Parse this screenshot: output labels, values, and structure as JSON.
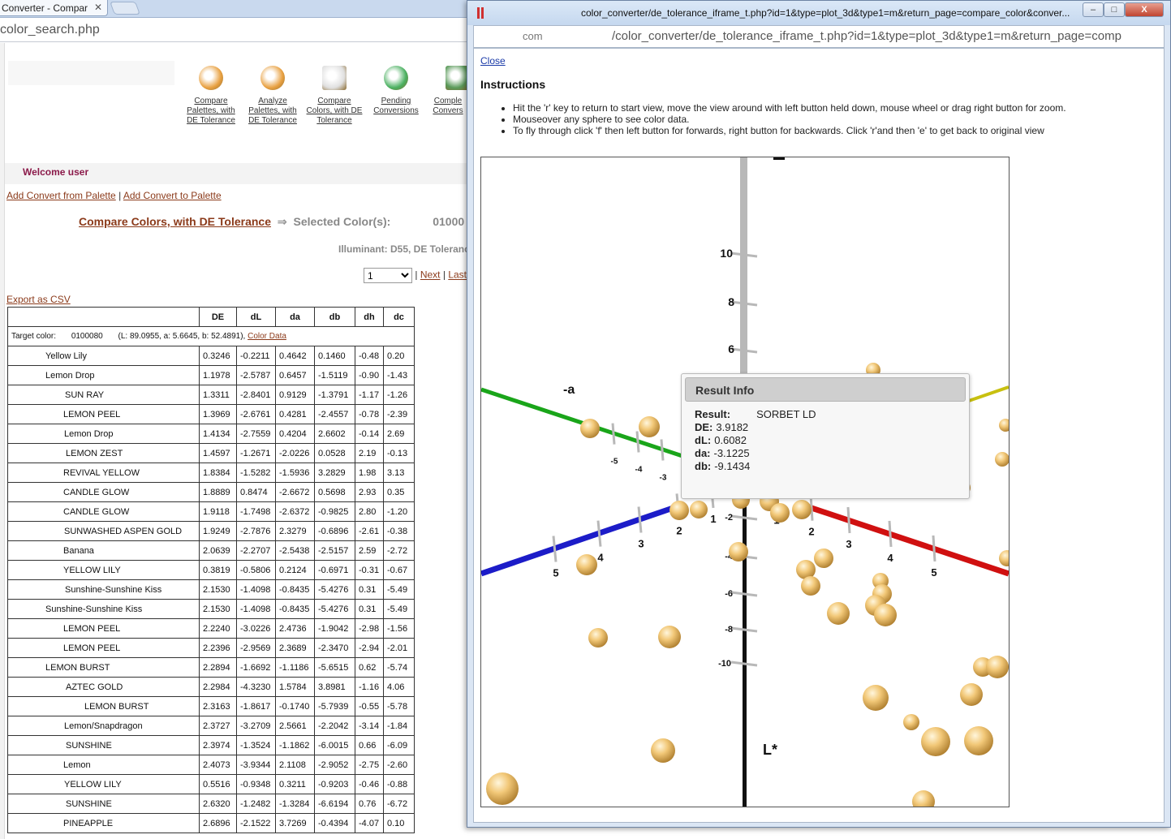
{
  "browser": {
    "tab_title": "Converter - Compar",
    "url_fragment": "color_search.php"
  },
  "nav": [
    {
      "label": "Compare Palettes, with DE Tolerance",
      "icon": "palette-icon"
    },
    {
      "label": "Analyze Palettes, with DE Tolerance",
      "icon": "palette-brush-icon"
    },
    {
      "label": "Compare Colors, with DE Tolerance",
      "icon": "color-wheel-icon"
    },
    {
      "label": "Pending Conversions",
      "icon": "runner-icon"
    },
    {
      "label": "Comple Convers",
      "icon": "checklist-icon"
    }
  ],
  "welcome": "Welcome user",
  "links": {
    "from": "Add Convert from Palette",
    "sep": "|",
    "to": "Add Convert to Palette"
  },
  "compare": {
    "title": "Compare Colors, with DE Tolerance",
    "arrow": "⇒",
    "selected_label": "Selected Color(s):",
    "selected_code": "01000",
    "illuminant": "Illuminant: D55, DE Toleranc"
  },
  "pager": {
    "page": "1",
    "next": "Next",
    "last": "Last",
    "sep": "|"
  },
  "export": "Export as CSV",
  "table": {
    "headers": [
      "",
      "DE",
      "dL",
      "da",
      "db",
      "dh",
      "dc"
    ],
    "target": {
      "label": "Target color:",
      "code": "0100080",
      "values": "(L: 89.0955, a: 5.6645, b: 52.4891),",
      "link": "Color Data"
    },
    "rows": [
      {
        "name": "Yellow Lily",
        "indent": 46,
        "de": "0.3246",
        "dl": "-0.2211",
        "da": "0.4642",
        "db": "0.1460",
        "dh": "-0.48",
        "dc": "0.20"
      },
      {
        "name": "Lemon Drop",
        "indent": 46,
        "de": "1.1978",
        "dl": "-2.5787",
        "da": "0.6457",
        "db": "-1.5119",
        "dh": "-0.90",
        "dc": "-1.43"
      },
      {
        "name": "SUN RAY",
        "indent": 70,
        "de": "1.3311",
        "dl": "-2.8401",
        "da": "0.9129",
        "db": "-1.3791",
        "dh": "-1.17",
        "dc": "-1.26"
      },
      {
        "name": "LEMON PEEL",
        "indent": 68,
        "de": "1.3969",
        "dl": "-2.6761",
        "da": "0.4281",
        "db": "-2.4557",
        "dh": "-0.78",
        "dc": "-2.39"
      },
      {
        "name": "Lemon Drop",
        "indent": 69,
        "de": "1.4134",
        "dl": "-2.7559",
        "da": "0.4204",
        "db": "2.6602",
        "dh": "-0.14",
        "dc": "2.69"
      },
      {
        "name": "LEMON ZEST",
        "indent": 71,
        "de": "1.4597",
        "dl": "-1.2671",
        "da": "-2.0226",
        "db": "0.0528",
        "dh": "2.19",
        "dc": "-0.13"
      },
      {
        "name": "REVIVAL YELLOW",
        "indent": 68,
        "de": "1.8384",
        "dl": "-1.5282",
        "da": "-1.5936",
        "db": "3.2829",
        "dh": "1.98",
        "dc": "3.13"
      },
      {
        "name": "CANDLE GLOW",
        "indent": 68,
        "de": "1.8889",
        "dl": "0.8474",
        "da": "-2.6672",
        "db": "0.5698",
        "dh": "2.93",
        "dc": "0.35"
      },
      {
        "name": "CANDLE GLOW",
        "indent": 68,
        "de": "1.9118",
        "dl": "-1.7498",
        "da": "-2.6372",
        "db": "-0.9825",
        "dh": "2.80",
        "dc": "-1.20"
      },
      {
        "name": "SUNWASHED ASPEN GOLD",
        "indent": 69,
        "de": "1.9249",
        "dl": "-2.7876",
        "da": "2.3279",
        "db": "-0.6896",
        "dh": "-2.61",
        "dc": "-0.38"
      },
      {
        "name": "Banana",
        "indent": 68,
        "de": "2.0639",
        "dl": "-2.2707",
        "da": "-2.5438",
        "db": "-2.5157",
        "dh": "2.59",
        "dc": "-2.72"
      },
      {
        "name": "YELLOW LILY",
        "indent": 68,
        "de": "0.3819",
        "dl": "-0.5806",
        "da": "0.2124",
        "db": "-0.6971",
        "dh": "-0.31",
        "dc": "-0.67"
      },
      {
        "name": "Sunshine-Sunshine Kiss",
        "indent": 70,
        "de": "2.1530",
        "dl": "-1.4098",
        "da": "-0.8435",
        "db": "-5.4276",
        "dh": "0.31",
        "dc": "-5.49"
      },
      {
        "name": "Sunshine-Sunshine Kiss",
        "indent": 46,
        "de": "2.1530",
        "dl": "-1.4098",
        "da": "-0.8435",
        "db": "-5.4276",
        "dh": "0.31",
        "dc": "-5.49"
      },
      {
        "name": "LEMON PEEL",
        "indent": 68,
        "de": "2.2240",
        "dl": "-3.0226",
        "da": "2.4736",
        "db": "-1.9042",
        "dh": "-2.98",
        "dc": "-1.56"
      },
      {
        "name": "LEMON PEEL",
        "indent": 68,
        "de": "2.2396",
        "dl": "-2.9569",
        "da": "2.3689",
        "db": "-2.3470",
        "dh": "-2.94",
        "dc": "-2.01"
      },
      {
        "name": "LEMON BURST",
        "indent": 46,
        "de": "2.2894",
        "dl": "-1.6692",
        "da": "-1.1186",
        "db": "-5.6515",
        "dh": "0.62",
        "dc": "-5.74"
      },
      {
        "name": "AZTEC GOLD",
        "indent": 71,
        "de": "2.2984",
        "dl": "-4.3230",
        "da": "1.5784",
        "db": "3.8981",
        "dh": "-1.16",
        "dc": "4.06"
      },
      {
        "name": "LEMON BURST",
        "indent": 94,
        "de": "2.3163",
        "dl": "-1.8617",
        "da": "-0.1740",
        "db": "-5.7939",
        "dh": "-0.55",
        "dc": "-5.78"
      },
      {
        "name": "Lemon/Snapdragon",
        "indent": 69,
        "de": "2.3727",
        "dl": "-3.2709",
        "da": "2.5661",
        "db": "-2.2042",
        "dh": "-3.14",
        "dc": "-1.84"
      },
      {
        "name": "SUNSHINE",
        "indent": 71,
        "de": "2.3974",
        "dl": "-1.3524",
        "da": "-1.1862",
        "db": "-6.0015",
        "dh": "0.66",
        "dc": "-6.09"
      },
      {
        "name": "Lemon",
        "indent": 68,
        "de": "2.4073",
        "dl": "-3.9344",
        "da": "2.1108",
        "db": "-2.9052",
        "dh": "-2.75",
        "dc": "-2.60"
      },
      {
        "name": "YELLOW LILY",
        "indent": 69,
        "de": "0.5516",
        "dl": "-0.9348",
        "da": "0.3211",
        "db": "-0.9203",
        "dh": "-0.46",
        "dc": "-0.88"
      },
      {
        "name": "SUNSHINE",
        "indent": 71,
        "de": "2.6320",
        "dl": "-1.2482",
        "da": "-1.3284",
        "db": "-6.6194",
        "dh": "0.76",
        "dc": "-6.72"
      },
      {
        "name": "PINEAPPLE",
        "indent": 68,
        "de": "2.6896",
        "dl": "-2.1522",
        "da": "3.7269",
        "db": "-0.4394",
        "dh": "-4.07",
        "dc": "0.10"
      }
    ]
  },
  "popup": {
    "title": "color_converter/de_tolerance_iframe_t.php?id=1&type=plot_3d&type1=m&return_page=compare_color&conver...",
    "url_host": "com",
    "url": "/color_converter/de_tolerance_iframe_t.php?id=1&type=plot_3d&type1=m&return_page=comp",
    "buttons": {
      "minimize": "–",
      "maximize": "□",
      "close": "X"
    },
    "close_link": "Close",
    "instructions_title": "Instructions",
    "instructions": [
      "Hit the 'r' key to return to start view, move the view around with left button held down, mouse wheel or drag right button for zoom.",
      "Mouseover any sphere to see color data.",
      "To fly through click 'f' then left button for forwards, right button for backwards. Click 'r'and then 'e' to get back to original view"
    ],
    "plot": {
      "axis_labels": {
        "a": "-a",
        "l": "L*"
      },
      "vertical_ticks": [
        "10",
        "8",
        "6",
        "-2",
        "-4",
        "-6",
        "-8",
        "-10"
      ],
      "blue_ticks": [
        "5",
        "4",
        "3",
        "2",
        "1"
      ],
      "red_ticks": [
        "1",
        "2",
        "3",
        "4",
        "5"
      ],
      "green_ticks": [
        "-5",
        "-4",
        "-3"
      ],
      "colors": {
        "green_axis": "#1aa51a",
        "red_axis": "#d01010",
        "blue_axis": "#1c1cc8",
        "yellow_axis": "#c8c010",
        "sphere": "#f2c878"
      }
    },
    "result": {
      "heading": "Result Info",
      "result_label": "Result:",
      "result_value": "SORBET LD",
      "de_label": "DE:",
      "de_value": "3.9182",
      "dl_label": "dL:",
      "dl_value": "0.6082",
      "da_label": "da:",
      "da_value": "-3.1225",
      "db_label": "db:",
      "db_value": "-9.1434"
    }
  }
}
